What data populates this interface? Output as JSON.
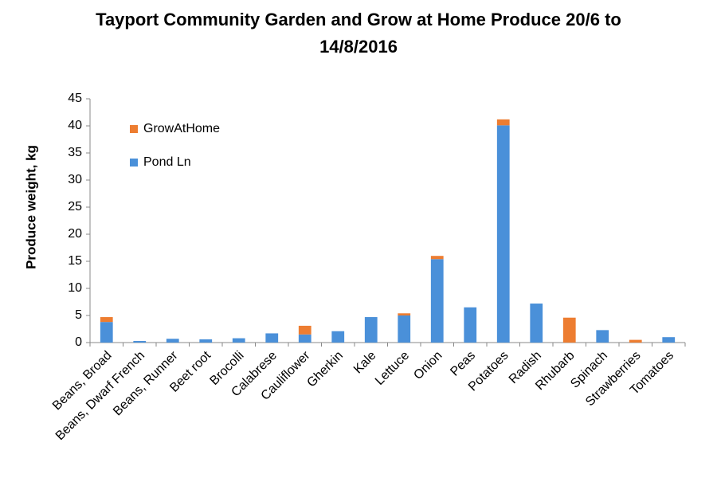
{
  "chart_data": {
    "type": "stacked_bar",
    "title": "Tayport Community Garden and Grow at Home Produce 20/6 to 14/8/2016",
    "y_label": "Produce weight, kg",
    "categories": [
      "Beans, Broad",
      "Beans, Dwarf French",
      "Beans, Runner",
      "Beet root",
      "Brocolli",
      "Calabrese",
      "Cauliflower",
      "Gherkin",
      "Kale",
      "Lettuce",
      "Onion",
      "Peas",
      "Potatoes",
      "Radish",
      "Rhubarb",
      "Spinach",
      "Strawberries",
      "Tomatoes"
    ],
    "series": [
      {
        "name": "Pond Ln",
        "color": "#4a90d9",
        "values": [
          3.8,
          0.3,
          0.7,
          0.6,
          0.8,
          1.7,
          1.5,
          2.1,
          4.7,
          5.0,
          15.4,
          6.5,
          40.1,
          7.2,
          0,
          2.3,
          0,
          1.0
        ]
      },
      {
        "name": "GrowAtHome",
        "color": "#ed7d31",
        "values": [
          0.9,
          0,
          0,
          0,
          0,
          0,
          1.6,
          0,
          0,
          0.4,
          0.6,
          0,
          1.1,
          0,
          4.6,
          0,
          0.5,
          0
        ]
      }
    ],
    "ylim": [
      0,
      45
    ],
    "yticks": [
      0,
      5,
      10,
      15,
      20,
      25,
      30,
      35,
      40,
      45
    ],
    "legend": "upper left"
  }
}
